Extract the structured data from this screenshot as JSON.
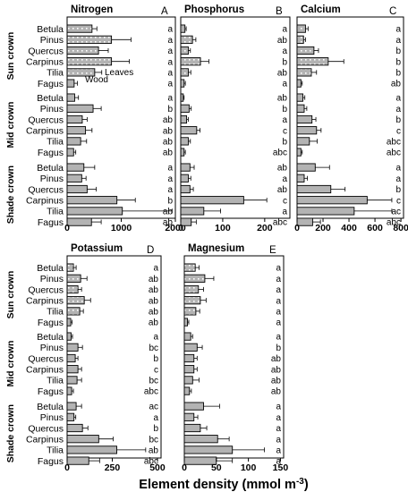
{
  "species": [
    "Betula",
    "Pinus",
    "Quercus",
    "Carpinus",
    "Tilia",
    "Fagus"
  ],
  "crowns": [
    "Sun crown",
    "Mid crown",
    "Shade crown"
  ],
  "legend": {
    "leaves": "Leaves",
    "wood": "Wood"
  },
  "x_axis_label": "Element density (mmol m",
  "x_axis_label_sup": "-3",
  "x_axis_label_end": ")",
  "colors": {
    "wood_fill": "#b3b3b3",
    "leaf_dots": "#ffffff",
    "bar_stroke": "#000000"
  },
  "chart_data": [
    {
      "type": "bar",
      "orientation": "horizontal",
      "panel": "A",
      "title": "Nitrogen",
      "xlim": [
        0,
        2000
      ],
      "ticks": [
        0,
        1000,
        2000
      ],
      "groups": [
        {
          "crown": "Sun crown",
          "bars": [
            {
              "species": "Betula",
              "value": 460,
              "err": 90,
              "letter": "a",
              "leaves": true
            },
            {
              "species": "Pinus",
              "value": 820,
              "err": 360,
              "letter": "a",
              "leaves": true
            },
            {
              "species": "Quercus",
              "value": 580,
              "err": 180,
              "letter": "a",
              "leaves": true
            },
            {
              "species": "Carpinus",
              "value": 820,
              "err": 330,
              "letter": "a",
              "leaves": true
            },
            {
              "species": "Tilia",
              "value": 510,
              "err": 130,
              "letter": "a",
              "leaves": true
            },
            {
              "species": "Fagus",
              "value": 130,
              "err": 60,
              "letter": "a",
              "leaves": false
            }
          ]
        },
        {
          "crown": "Mid crown",
          "bars": [
            {
              "species": "Betula",
              "value": 140,
              "err": 70,
              "letter": "a"
            },
            {
              "species": "Pinus",
              "value": 480,
              "err": 150,
              "letter": "b"
            },
            {
              "species": "Quercus",
              "value": 280,
              "err": 90,
              "letter": "ab"
            },
            {
              "species": "Carpinus",
              "value": 340,
              "err": 120,
              "letter": "ab"
            },
            {
              "species": "Tilia",
              "value": 250,
              "err": 110,
              "letter": "ab"
            },
            {
              "species": "Fagus",
              "value": 120,
              "err": 40,
              "letter": "ab"
            }
          ]
        },
        {
          "crown": "Shade crown",
          "bars": [
            {
              "species": "Betula",
              "value": 310,
              "err": 200,
              "letter": "a"
            },
            {
              "species": "Pinus",
              "value": 270,
              "err": 80,
              "letter": "a"
            },
            {
              "species": "Quercus",
              "value": 370,
              "err": 170,
              "letter": "a"
            },
            {
              "species": "Carpinus",
              "value": 920,
              "err": 340,
              "letter": "b"
            },
            {
              "species": "Tilia",
              "value": 1020,
              "err": 920,
              "letter": "ab"
            },
            {
              "species": "Fagus",
              "value": 450,
              "err": 180,
              "letter": "ab"
            }
          ]
        }
      ]
    },
    {
      "type": "bar",
      "orientation": "horizontal",
      "panel": "B",
      "title": "Phosphorus",
      "xlim": [
        0,
        260
      ],
      "ticks": [
        0,
        100,
        200
      ],
      "groups": [
        {
          "crown": "Sun crown",
          "bars": [
            {
              "species": "Betula",
              "value": 10,
              "err": 3,
              "letter": "a",
              "leaves": true
            },
            {
              "species": "Pinus",
              "value": 28,
              "err": 8,
              "letter": "ab",
              "leaves": true
            },
            {
              "species": "Quercus",
              "value": 18,
              "err": 5,
              "letter": "a",
              "leaves": true
            },
            {
              "species": "Carpinus",
              "value": 47,
              "err": 20,
              "letter": "b",
              "leaves": true
            },
            {
              "species": "Tilia",
              "value": 18,
              "err": 6,
              "letter": "ab",
              "leaves": true
            },
            {
              "species": "Fagus",
              "value": 8,
              "err": 3,
              "letter": "a",
              "leaves": false
            }
          ]
        },
        {
          "crown": "Mid crown",
          "bars": [
            {
              "species": "Betula",
              "value": 6,
              "err": 2,
              "letter": "ab"
            },
            {
              "species": "Pinus",
              "value": 20,
              "err": 5,
              "letter": "b"
            },
            {
              "species": "Quercus",
              "value": 14,
              "err": 4,
              "letter": "a"
            },
            {
              "species": "Carpinus",
              "value": 38,
              "err": 8,
              "letter": "c"
            },
            {
              "species": "Tilia",
              "value": 18,
              "err": 5,
              "letter": "b"
            },
            {
              "species": "Fagus",
              "value": 8,
              "err": 3,
              "letter": "abc"
            }
          ]
        },
        {
          "crown": "Shade crown",
          "bars": [
            {
              "species": "Betula",
              "value": 22,
              "err": 10,
              "letter": "ab"
            },
            {
              "species": "Pinus",
              "value": 18,
              "err": 6,
              "letter": "a"
            },
            {
              "species": "Quercus",
              "value": 22,
              "err": 8,
              "letter": "ab"
            },
            {
              "species": "Carpinus",
              "value": 150,
              "err": 55,
              "letter": "c"
            },
            {
              "species": "Tilia",
              "value": 55,
              "err": 40,
              "letter": "a"
            },
            {
              "species": "Fagus",
              "value": 25,
              "err": 12,
              "letter": "abc"
            }
          ]
        }
      ]
    },
    {
      "type": "bar",
      "orientation": "horizontal",
      "panel": "C",
      "title": "Calcium",
      "xlim": [
        0,
        820
      ],
      "ticks": [
        0,
        200,
        400,
        600,
        800
      ],
      "groups": [
        {
          "crown": "Sun crown",
          "bars": [
            {
              "species": "Betula",
              "value": 65,
              "err": 20,
              "letter": "a",
              "leaves": true
            },
            {
              "species": "Pinus",
              "value": 50,
              "err": 15,
              "letter": "a",
              "leaves": true
            },
            {
              "species": "Quercus",
              "value": 130,
              "err": 35,
              "letter": "b",
              "leaves": true
            },
            {
              "species": "Carpinus",
              "value": 240,
              "err": 120,
              "letter": "b",
              "leaves": true
            },
            {
              "species": "Tilia",
              "value": 110,
              "err": 40,
              "letter": "b",
              "leaves": true
            },
            {
              "species": "Fagus",
              "value": 30,
              "err": 10,
              "letter": "ab",
              "leaves": false
            }
          ]
        },
        {
          "crown": "Mid crown",
          "bars": [
            {
              "species": "Betula",
              "value": 45,
              "err": 15,
              "letter": "a"
            },
            {
              "species": "Pinus",
              "value": 55,
              "err": 20,
              "letter": "a"
            },
            {
              "species": "Quercus",
              "value": 115,
              "err": 30,
              "letter": "b"
            },
            {
              "species": "Carpinus",
              "value": 150,
              "err": 35,
              "letter": "c"
            },
            {
              "species": "Tilia",
              "value": 95,
              "err": 60,
              "letter": "abc"
            },
            {
              "species": "Fagus",
              "value": 30,
              "err": 10,
              "letter": "abc"
            }
          ]
        },
        {
          "crown": "Shade crown",
          "bars": [
            {
              "species": "Betula",
              "value": 140,
              "err": 110,
              "letter": "a"
            },
            {
              "species": "Pinus",
              "value": 55,
              "err": 25,
              "letter": "a"
            },
            {
              "species": "Quercus",
              "value": 260,
              "err": 110,
              "letter": "b"
            },
            {
              "species": "Carpinus",
              "value": 540,
              "err": 190,
              "letter": "c"
            },
            {
              "species": "Tilia",
              "value": 440,
              "err": 290,
              "letter": "ac"
            },
            {
              "species": "Fagus",
              "value": 120,
              "err": 60,
              "letter": "abc"
            }
          ]
        }
      ]
    },
    {
      "type": "bar",
      "orientation": "horizontal",
      "panel": "D",
      "title": "Potassium",
      "xlim": [
        0,
        520
      ],
      "ticks": [
        0,
        250,
        500
      ],
      "groups": [
        {
          "crown": "Sun crown",
          "bars": [
            {
              "species": "Betula",
              "value": 35,
              "err": 15,
              "letter": "a",
              "leaves": true
            },
            {
              "species": "Pinus",
              "value": 75,
              "err": 35,
              "letter": "ab",
              "leaves": true
            },
            {
              "species": "Quercus",
              "value": 60,
              "err": 20,
              "letter": "ab",
              "leaves": true
            },
            {
              "species": "Carpinus",
              "value": 95,
              "err": 35,
              "letter": "ab",
              "leaves": true
            },
            {
              "species": "Tilia",
              "value": 70,
              "err": 20,
              "letter": "ab",
              "leaves": true
            },
            {
              "species": "Fagus",
              "value": 20,
              "err": 8,
              "letter": "ab",
              "leaves": false
            }
          ]
        },
        {
          "crown": "Mid crown",
          "bars": [
            {
              "species": "Betula",
              "value": 22,
              "err": 8,
              "letter": "a"
            },
            {
              "species": "Pinus",
              "value": 60,
              "err": 25,
              "letter": "bc"
            },
            {
              "species": "Quercus",
              "value": 45,
              "err": 15,
              "letter": "b"
            },
            {
              "species": "Carpinus",
              "value": 60,
              "err": 20,
              "letter": "c"
            },
            {
              "species": "Tilia",
              "value": 55,
              "err": 25,
              "letter": "bc"
            },
            {
              "species": "Fagus",
              "value": 25,
              "err": 10,
              "letter": "abc"
            }
          ]
        },
        {
          "crown": "Shade crown",
          "bars": [
            {
              "species": "Betula",
              "value": 50,
              "err": 30,
              "letter": "ac"
            },
            {
              "species": "Pinus",
              "value": 38,
              "err": 10,
              "letter": "a"
            },
            {
              "species": "Quercus",
              "value": 85,
              "err": 30,
              "letter": "b"
            },
            {
              "species": "Carpinus",
              "value": 175,
              "err": 80,
              "letter": "bc"
            },
            {
              "species": "Tilia",
              "value": 275,
              "err": 160,
              "letter": "ab"
            },
            {
              "species": "Fagus",
              "value": 120,
              "err": 60,
              "letter": "abc"
            }
          ]
        }
      ]
    },
    {
      "type": "bar",
      "orientation": "horizontal",
      "panel": "E",
      "title": "Magnesium",
      "xlim": [
        0,
        155
      ],
      "ticks": [
        0,
        50,
        100,
        150
      ],
      "groups": [
        {
          "crown": "Sun crown",
          "bars": [
            {
              "species": "Betula",
              "value": 17,
              "err": 6,
              "letter": "a",
              "leaves": true
            },
            {
              "species": "Pinus",
              "value": 32,
              "err": 14,
              "letter": "a",
              "leaves": true
            },
            {
              "species": "Quercus",
              "value": 22,
              "err": 8,
              "letter": "a",
              "leaves": true
            },
            {
              "species": "Carpinus",
              "value": 25,
              "err": 9,
              "letter": "a",
              "leaves": true
            },
            {
              "species": "Tilia",
              "value": 18,
              "err": 6,
              "letter": "a",
              "leaves": true
            },
            {
              "species": "Fagus",
              "value": 5,
              "err": 2,
              "letter": "a",
              "leaves": false
            }
          ]
        },
        {
          "crown": "Mid crown",
          "bars": [
            {
              "species": "Betula",
              "value": 10,
              "err": 3,
              "letter": "a"
            },
            {
              "species": "Pinus",
              "value": 20,
              "err": 8,
              "letter": "b"
            },
            {
              "species": "Quercus",
              "value": 15,
              "err": 5,
              "letter": "ab"
            },
            {
              "species": "Carpinus",
              "value": 15,
              "err": 5,
              "letter": "ab"
            },
            {
              "species": "Tilia",
              "value": 13,
              "err": 10,
              "letter": "ab"
            },
            {
              "species": "Fagus",
              "value": 8,
              "err": 3,
              "letter": "ab"
            }
          ]
        },
        {
          "crown": "Shade crown",
          "bars": [
            {
              "species": "Betula",
              "value": 30,
              "err": 25,
              "letter": "a"
            },
            {
              "species": "Pinus",
              "value": 15,
              "err": 6,
              "letter": "a"
            },
            {
              "species": "Quercus",
              "value": 25,
              "err": 10,
              "letter": "a"
            },
            {
              "species": "Carpinus",
              "value": 52,
              "err": 18,
              "letter": "a"
            },
            {
              "species": "Tilia",
              "value": 75,
              "err": 50,
              "letter": "a"
            },
            {
              "species": "Fagus",
              "value": 50,
              "err": 25,
              "letter": "a"
            }
          ]
        }
      ]
    }
  ]
}
